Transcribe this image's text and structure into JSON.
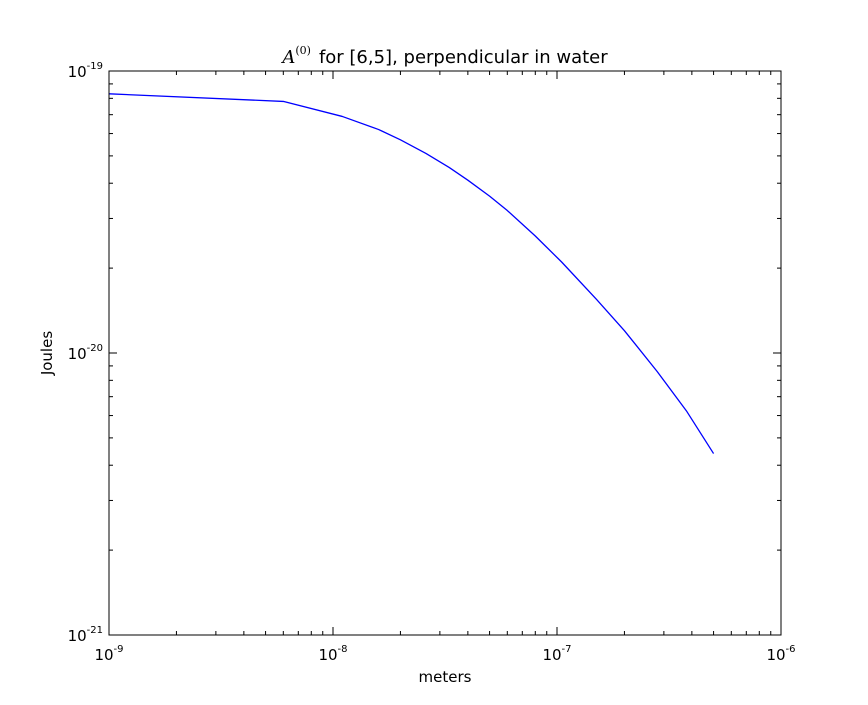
{
  "chart_data": {
    "type": "line",
    "title_math": "A",
    "title_math_superscript": "(0)",
    "title_text": "for [6,5], perpendicular in water",
    "xlabel": "meters",
    "ylabel": "Joules",
    "xscale": "log",
    "yscale": "log",
    "xlim": [
      1e-09,
      1e-06
    ],
    "ylim": [
      1e-21,
      1e-19
    ],
    "grid": false,
    "x_ticks": [
      {
        "base": "10",
        "exp": "-9",
        "value": 1e-09
      },
      {
        "base": "10",
        "exp": "-8",
        "value": 1e-08
      },
      {
        "base": "10",
        "exp": "-7",
        "value": 1e-07
      },
      {
        "base": "10",
        "exp": "-6",
        "value": 1e-06
      }
    ],
    "y_ticks": [
      {
        "base": "10",
        "exp": "-21",
        "value": 1e-21
      },
      {
        "base": "10",
        "exp": "-20",
        "value": 1e-20
      },
      {
        "base": "10",
        "exp": "-19",
        "value": 1e-19
      }
    ],
    "series": [
      {
        "color": "#0000ff",
        "x": [
          1e-09,
          6e-09,
          1.1e-08,
          1.6e-08,
          2e-08,
          2.6e-08,
          3.3e-08,
          4e-08,
          5e-08,
          6e-08,
          8e-08,
          1.05e-07,
          1.5e-07,
          2e-07,
          2.8e-07,
          3.8e-07,
          5e-07
        ],
        "y": [
          8.3e-20,
          7.8e-20,
          6.9e-20,
          6.2e-20,
          5.7e-20,
          5.1e-20,
          4.55e-20,
          4.1e-20,
          3.6e-20,
          3.2e-20,
          2.6e-20,
          2.1e-20,
          1.55e-20,
          1.2e-20,
          8.6e-21,
          6.2e-21,
          4.4e-21
        ]
      }
    ]
  }
}
